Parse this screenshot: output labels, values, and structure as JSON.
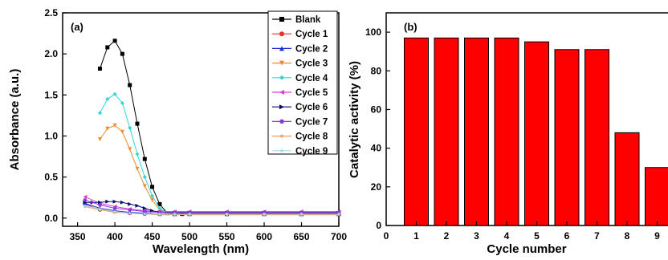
{
  "chart_data": [
    {
      "type": "line",
      "panel_label": "(a)",
      "xlabel": "Wavelength (nm)",
      "ylabel": "Absorbance (a.u.)",
      "xlim": [
        330,
        700
      ],
      "ylim": [
        -0.1,
        2.5
      ],
      "xticks": [
        350,
        400,
        450,
        500,
        550,
        600,
        650,
        700
      ],
      "yticks": [
        0.0,
        0.5,
        1.0,
        1.5,
        2.0,
        2.5
      ],
      "ytick_labels": [
        "0.0",
        "0.5",
        "1.0",
        "1.5",
        "2.0",
        "2.5"
      ],
      "legend_position": "top-right",
      "series": [
        {
          "name": "Blank",
          "color": "#000000",
          "marker": "square",
          "x": [
            380,
            390,
            400,
            410,
            420,
            430,
            440,
            450,
            460,
            470,
            480,
            490,
            500,
            550,
            600,
            650,
            700
          ],
          "y": [
            1.82,
            2.08,
            2.16,
            2.0,
            1.62,
            1.15,
            0.72,
            0.38,
            0.17,
            0.06,
            0.05,
            0.05,
            0.05,
            0.05,
            0.05,
            0.05,
            0.05
          ]
        },
        {
          "name": "Cycle 1",
          "color": "#e8322f",
          "marker": "circle",
          "x": [
            360,
            380,
            400,
            420,
            440,
            460,
            480,
            500,
            550,
            600,
            650,
            700
          ],
          "y": [
            0.17,
            0.1,
            0.08,
            0.06,
            0.05,
            0.05,
            0.05,
            0.05,
            0.05,
            0.05,
            0.05,
            0.05
          ]
        },
        {
          "name": "Cycle 2",
          "color": "#1a2fd6",
          "marker": "triangle-up",
          "x": [
            360,
            380,
            400,
            420,
            440,
            460,
            480,
            500,
            550,
            600,
            650,
            700
          ],
          "y": [
            0.18,
            0.12,
            0.09,
            0.07,
            0.06,
            0.05,
            0.05,
            0.05,
            0.05,
            0.05,
            0.05,
            0.05
          ]
        },
        {
          "name": "Cycle 3",
          "color": "#f08a2c",
          "marker": "triangle-down",
          "x": [
            380,
            390,
            400,
            410,
            420,
            430,
            440,
            450,
            460,
            470,
            480,
            500,
            550,
            600,
            650,
            700
          ],
          "y": [
            0.96,
            1.09,
            1.13,
            1.05,
            0.84,
            0.6,
            0.39,
            0.22,
            0.1,
            0.06,
            0.05,
            0.05,
            0.05,
            0.05,
            0.05,
            0.05
          ]
        },
        {
          "name": "Cycle 4",
          "color": "#2fd6d6",
          "marker": "diamond",
          "x": [
            380,
            390,
            400,
            410,
            420,
            430,
            440,
            450,
            460,
            470,
            480,
            500,
            550,
            600,
            650,
            700
          ],
          "y": [
            1.28,
            1.45,
            1.51,
            1.4,
            1.1,
            0.78,
            0.5,
            0.27,
            0.12,
            0.06,
            0.06,
            0.06,
            0.06,
            0.06,
            0.06,
            0.06
          ]
        },
        {
          "name": "Cycle 5",
          "color": "#e03ad9",
          "marker": "triangle-left",
          "x": [
            360,
            380,
            400,
            420,
            440,
            460,
            480,
            500,
            550,
            600,
            650,
            700
          ],
          "y": [
            0.26,
            0.18,
            0.14,
            0.11,
            0.09,
            0.08,
            0.08,
            0.08,
            0.08,
            0.08,
            0.08,
            0.08
          ]
        },
        {
          "name": "Cycle 6",
          "color": "#0b0b6a",
          "marker": "triangle-right",
          "x": [
            360,
            370,
            380,
            390,
            400,
            410,
            420,
            430,
            440,
            450,
            460,
            480,
            500,
            550,
            600,
            650,
            700
          ],
          "y": [
            0.19,
            0.19,
            0.19,
            0.2,
            0.2,
            0.19,
            0.17,
            0.15,
            0.12,
            0.09,
            0.07,
            0.06,
            0.06,
            0.06,
            0.06,
            0.06,
            0.06
          ]
        },
        {
          "name": "Cycle 7",
          "color": "#8a3ad9",
          "marker": "hexagon",
          "x": [
            360,
            380,
            400,
            420,
            440,
            460,
            480,
            500,
            550,
            600,
            650,
            700
          ],
          "y": [
            0.22,
            0.16,
            0.12,
            0.1,
            0.08,
            0.07,
            0.07,
            0.07,
            0.07,
            0.07,
            0.07,
            0.07
          ]
        },
        {
          "name": "Cycle 8",
          "color": "#e8a06a",
          "marker": "star",
          "x": [
            360,
            380,
            400,
            420,
            440,
            460,
            480,
            500,
            550,
            600,
            650,
            700
          ],
          "y": [
            0.14,
            0.1,
            0.07,
            0.06,
            0.05,
            0.04,
            0.04,
            0.04,
            0.04,
            0.04,
            0.04,
            0.04
          ]
        },
        {
          "name": "Cycle 9",
          "color": "#a6dcec",
          "marker": "star",
          "x": [
            360,
            380,
            400,
            420,
            440,
            460,
            480,
            500,
            550,
            600,
            650,
            700
          ],
          "y": [
            0.15,
            0.11,
            0.08,
            0.06,
            0.05,
            0.05,
            0.05,
            0.05,
            0.05,
            0.05,
            0.05,
            0.05
          ]
        }
      ]
    },
    {
      "type": "bar",
      "panel_label": "(b)",
      "xlabel": "Cycle number",
      "ylabel": "Catalytic activity (%)",
      "xlim": [
        0,
        9.6
      ],
      "ylim": [
        0,
        110
      ],
      "xticks": [
        0,
        1,
        2,
        3,
        4,
        5,
        6,
        7,
        8,
        9
      ],
      "yticks": [
        0,
        20,
        40,
        60,
        80,
        100
      ],
      "bar_color": "#ff0000",
      "categories": [
        1,
        2,
        3,
        4,
        5,
        6,
        7,
        8,
        9
      ],
      "values": [
        97,
        97,
        97,
        97,
        95,
        91,
        91,
        48,
        30
      ]
    }
  ]
}
